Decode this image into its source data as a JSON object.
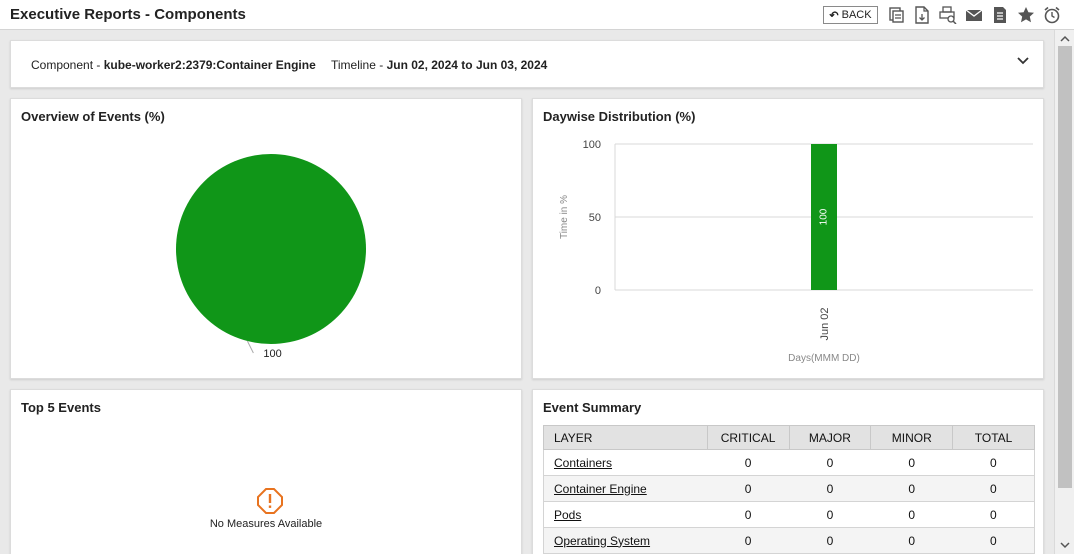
{
  "header": {
    "title": "Executive Reports - Components",
    "back_label": "BACK",
    "icons": [
      "copy-report-icon",
      "pdf-download-icon",
      "print-preview-icon",
      "email-icon",
      "document-icon",
      "favorite-star-icon",
      "alarm-clock-icon"
    ]
  },
  "filter": {
    "component_label": "Component - ",
    "component_value": "kube-worker2:2379:Container Engine",
    "timeline_label": "Timeline - ",
    "timeline_value": "Jun 02, 2024 to Jun 03, 2024"
  },
  "overview": {
    "title": "Overview of Events (%)",
    "chart_data": {
      "type": "pie",
      "slices": [
        {
          "value": 100,
          "color": "#109618"
        }
      ],
      "data_labels": [
        "100"
      ]
    }
  },
  "daywise": {
    "title": "Daywise Distribution (%)",
    "chart_data": {
      "type": "bar",
      "categories": [
        "Jun 02"
      ],
      "values": [
        100
      ],
      "data_labels": [
        "100"
      ],
      "bar_color": "#109618",
      "xlabel": "Days(MMM DD)",
      "ylabel": "Time in %",
      "ylim": [
        0,
        100
      ],
      "yticks": [
        "0",
        "50",
        "100"
      ],
      "grid": true
    }
  },
  "top_events": {
    "title": "Top 5 Events",
    "empty_message": "No Measures Available",
    "warning_color": "#e8731f"
  },
  "event_summary": {
    "title": "Event Summary",
    "columns": [
      "LAYER",
      "CRITICAL",
      "MAJOR",
      "MINOR",
      "TOTAL"
    ],
    "rows": [
      {
        "layer": "Containers",
        "critical": "0",
        "major": "0",
        "minor": "0",
        "total": "0"
      },
      {
        "layer": "Container Engine",
        "critical": "0",
        "major": "0",
        "minor": "0",
        "total": "0"
      },
      {
        "layer": "Pods",
        "critical": "0",
        "major": "0",
        "minor": "0",
        "total": "0"
      },
      {
        "layer": "Operating System",
        "critical": "0",
        "major": "0",
        "minor": "0",
        "total": "0"
      }
    ]
  }
}
